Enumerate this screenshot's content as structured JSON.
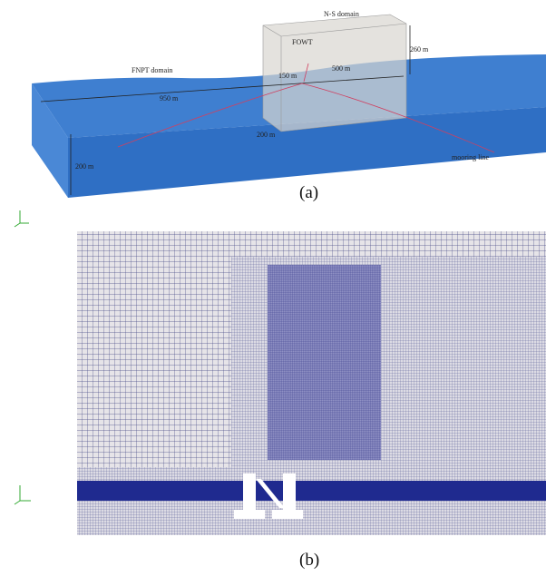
{
  "panel_a": {
    "labels": [
      "N-S domain",
      "FOWT",
      "260 m",
      "FNPT domain",
      "150 m",
      "500 m",
      "950 m",
      "200 m",
      "200 m",
      "mooring line"
    ],
    "caption": "(a)"
  },
  "panel_b": {
    "caption": "(b)"
  }
}
